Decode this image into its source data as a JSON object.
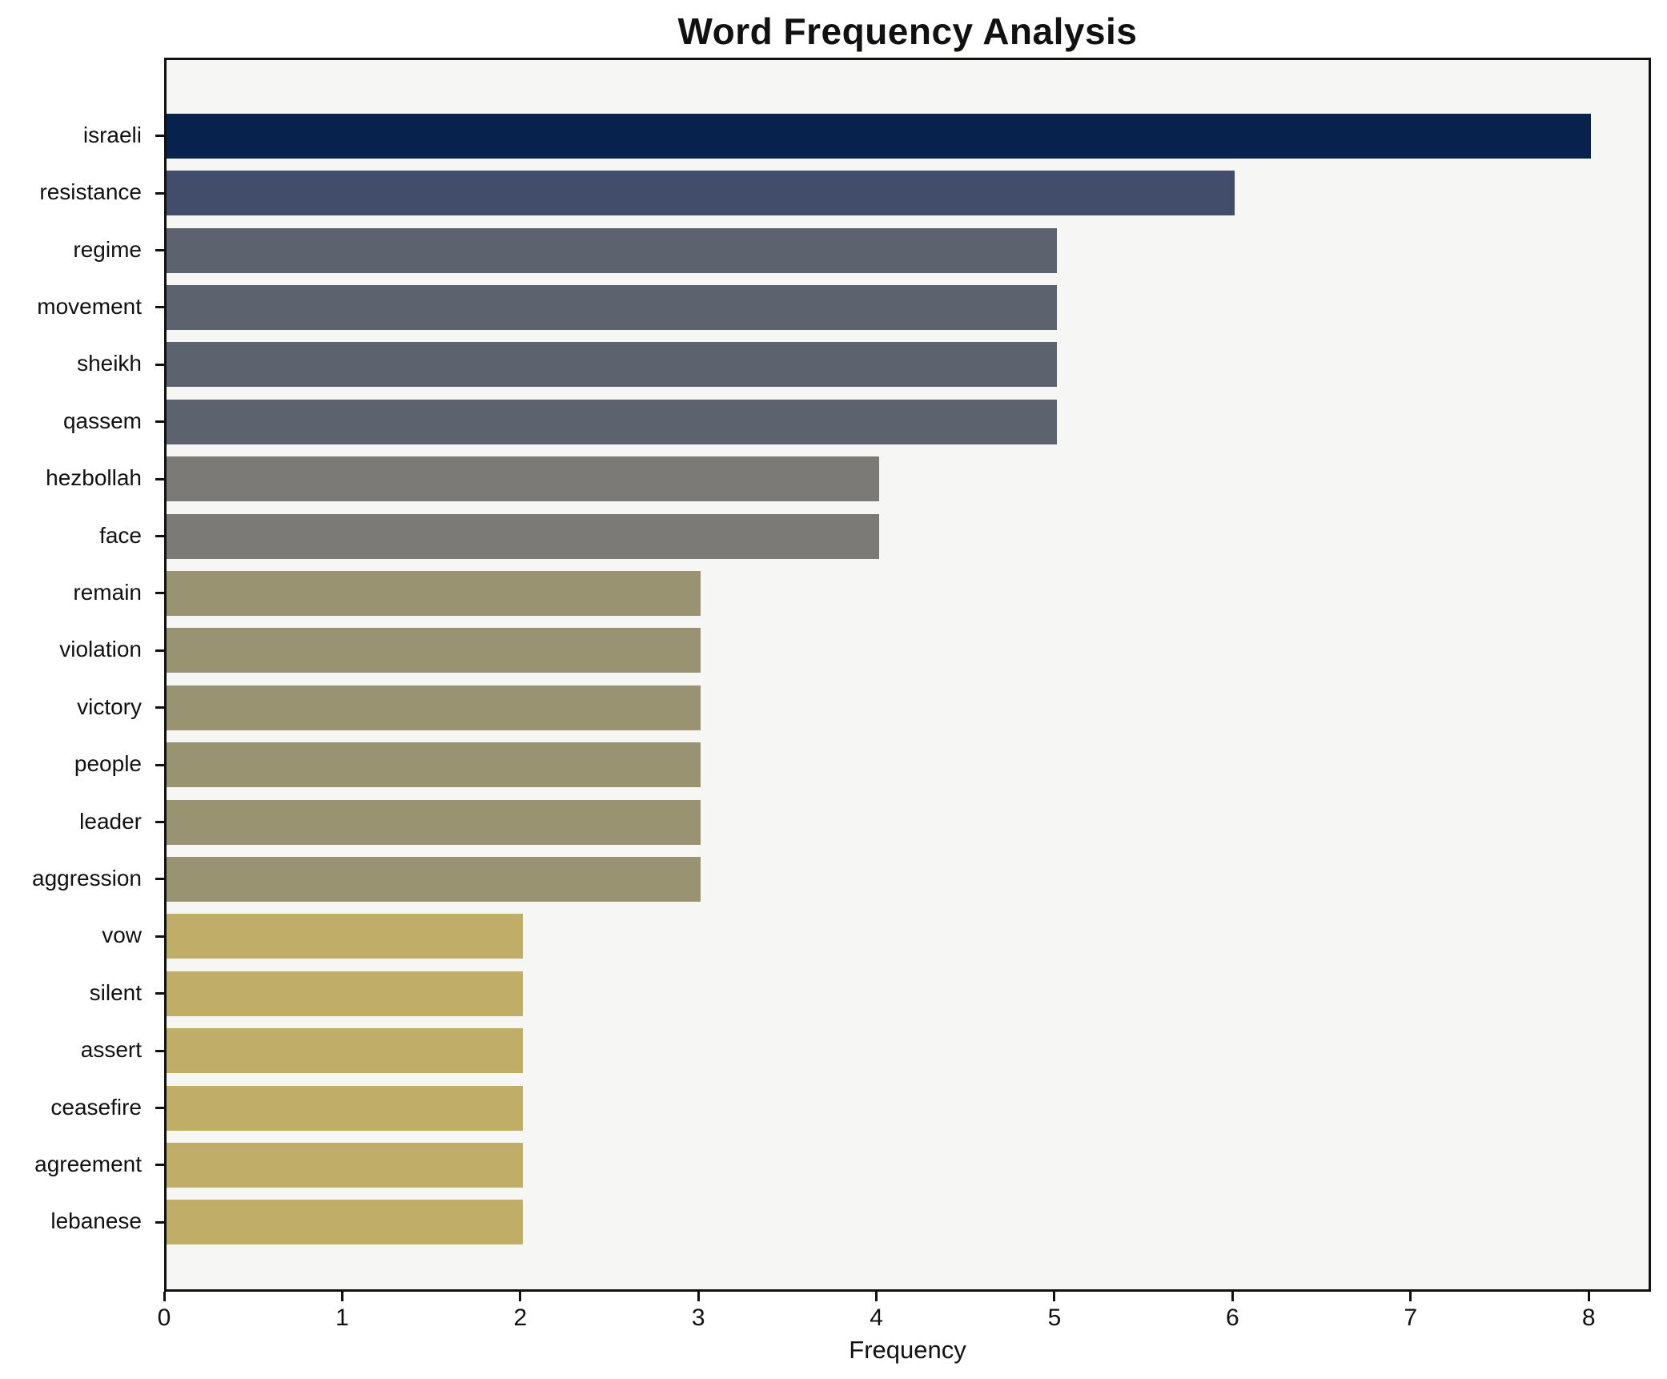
{
  "chart_data": {
    "type": "bar",
    "orientation": "horizontal",
    "title": "Word Frequency Analysis",
    "xlabel": "Frequency",
    "ylabel": "",
    "categories": [
      "israeli",
      "resistance",
      "regime",
      "movement",
      "sheikh",
      "qassem",
      "hezbollah",
      "face",
      "remain",
      "violation",
      "victory",
      "people",
      "leader",
      "aggression",
      "vow",
      "silent",
      "assert",
      "ceasefire",
      "agreement",
      "lebanese"
    ],
    "values": [
      8,
      6,
      5,
      5,
      5,
      5,
      4,
      4,
      3,
      3,
      3,
      3,
      3,
      3,
      2,
      2,
      2,
      2,
      2,
      2
    ],
    "bar_colors": [
      "#07224c",
      "#424d6b",
      "#5d626f",
      "#5d626f",
      "#5d626f",
      "#5d626f",
      "#7b7a76",
      "#7b7a76",
      "#9a9372",
      "#9a9372",
      "#9a9372",
      "#9a9372",
      "#9a9372",
      "#9a9372",
      "#bfad68",
      "#bfad68",
      "#bfad68",
      "#bfad68",
      "#bfad68",
      "#bfad68"
    ],
    "xticks": [
      0,
      1,
      2,
      3,
      4,
      5,
      6,
      7,
      8
    ],
    "xlim": [
      0,
      8.35
    ],
    "grid": false,
    "legend": "none",
    "plot_background": "#f6f6f4",
    "figure_background": "#ffffff",
    "spine_color": "#111111",
    "text_color": "#111111"
  }
}
